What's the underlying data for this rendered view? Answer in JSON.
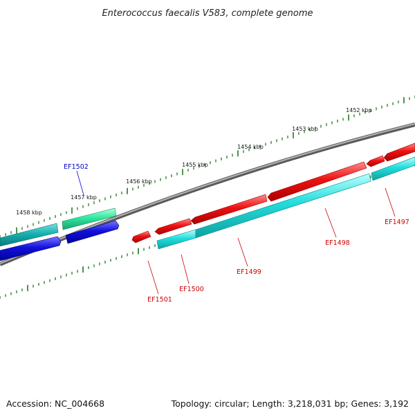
{
  "title": "Enterococcus faecalis V583, complete genome",
  "footer": {
    "accession": "Accession: NC_004668",
    "summary": "Topology: circular; Length: 3,218,031 bp; Genes: 3,192"
  },
  "scale_labels": [
    "1452 kbp",
    "1453 kbp",
    "1454 kbp",
    "1455 kbp",
    "1456 kbp",
    "1457 kbp",
    "1458 kbp"
  ],
  "genes": [
    {
      "name": "EF1502",
      "color": "#0000cc"
    },
    {
      "name": "EF1501",
      "color": "#cc0000"
    },
    {
      "name": "EF1500",
      "color": "#cc0000"
    },
    {
      "name": "EF1499",
      "color": "#cc0000"
    },
    {
      "name": "EF1498",
      "color": "#cc0000"
    },
    {
      "name": "EF1497",
      "color": "#cc0000"
    }
  ],
  "colors": {
    "backbone": "#8a8a8a",
    "tick": "#1f7a1f",
    "forward_strand": "#ee1111",
    "reverse_strand": "#1111dd",
    "cds_cyan": "#22dddd",
    "cds_teal": "#18b0b0",
    "cds_green": "#30e8a0"
  }
}
